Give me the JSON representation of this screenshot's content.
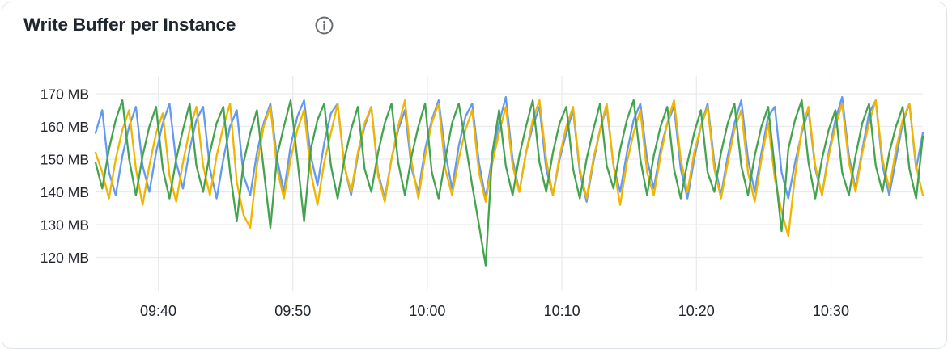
{
  "panel": {
    "title": "Write Buffer per Instance",
    "info_icon": "info-circle"
  },
  "colors": {
    "card_border": "#dfe2e6",
    "grid": "#e9eaec",
    "axis_text": "#21262e",
    "title_text": "#20262e",
    "icon": "#676c72",
    "series_blue": "#6399f1",
    "series_green": "#44a34e",
    "series_yellow": "#f1b500"
  },
  "chart_data": {
    "type": "line",
    "title": "Write Buffer per Instance",
    "unit": "MB",
    "grid": true,
    "legend_position": "none",
    "x_start_time": "09:35:20",
    "x_step_seconds": 30,
    "x_span_minutes": 61.5,
    "x_tick_labels": [
      "09:40",
      "09:50",
      "10:00",
      "10:10",
      "10:20",
      "10:30"
    ],
    "y_ticks": [
      170,
      160,
      150,
      140,
      130,
      120
    ],
    "y_tick_labels": [
      "170 MB",
      "160 MB",
      "150 MB",
      "140 MB",
      "130 MB",
      "120 MB"
    ],
    "ylim": [
      110,
      175
    ],
    "series": [
      {
        "name": "series-blue",
        "color": "#6399f1",
        "values": [
          158,
          165,
          146,
          139,
          151,
          160,
          166,
          148,
          140,
          152,
          161,
          167,
          149,
          141,
          153,
          162,
          166,
          147,
          138,
          150,
          160,
          165,
          145,
          139,
          152,
          161,
          167,
          150,
          140,
          154,
          163,
          168,
          151,
          142,
          155,
          164,
          167,
          148,
          139,
          151,
          160,
          166,
          146,
          138,
          150,
          159,
          165,
          147,
          140,
          153,
          162,
          168,
          152,
          141,
          154,
          163,
          167,
          149,
          138,
          151,
          161,
          169,
          150,
          140,
          152,
          160,
          166,
          147,
          139,
          150,
          158,
          165,
          146,
          137,
          149,
          159,
          166,
          148,
          140,
          152,
          162,
          167,
          150,
          141,
          153,
          161,
          166,
          147,
          138,
          150,
          160,
          167,
          149,
          139,
          151,
          161,
          168,
          150,
          140,
          152,
          163,
          166,
          146,
          138,
          149,
          158,
          165,
          147,
          139,
          152,
          162,
          169,
          151,
          141,
          153,
          164,
          168,
          148,
          139,
          150,
          161,
          167,
          147,
          158
        ]
      },
      {
        "name": "series-green",
        "color": "#44a34e",
        "values": [
          149,
          141,
          153,
          162,
          168,
          150,
          139,
          151,
          160,
          166,
          147,
          138,
          150,
          159,
          167,
          148,
          140,
          152,
          161,
          166,
          146,
          131,
          149,
          158,
          165,
          147,
          129,
          151,
          160,
          168,
          150,
          131,
          153,
          162,
          167,
          148,
          138,
          150,
          159,
          166,
          147,
          140,
          152,
          161,
          167,
          149,
          139,
          151,
          160,
          167,
          146,
          138,
          150,
          161,
          167,
          155,
          142,
          130,
          117.5,
          152,
          165,
          148,
          139,
          151,
          160,
          168,
          149,
          140,
          152,
          161,
          166,
          147,
          138,
          150,
          159,
          167,
          148,
          141,
          153,
          162,
          168,
          150,
          139,
          151,
          160,
          166,
          147,
          138,
          149,
          158,
          165,
          146,
          140,
          152,
          161,
          167,
          148,
          139,
          151,
          160,
          166,
          147,
          128,
          153,
          162,
          168,
          149,
          138,
          150,
          159,
          165,
          146,
          139,
          151,
          161,
          167,
          148,
          140,
          152,
          160,
          166,
          147,
          138,
          157
        ]
      },
      {
        "name": "series-yellow",
        "color": "#f1b500",
        "values": [
          152,
          146,
          138,
          150,
          159,
          165,
          147,
          136,
          148,
          158,
          164,
          145,
          137,
          149,
          159,
          166,
          148,
          139,
          151,
          160,
          167,
          143,
          133,
          129,
          148,
          160,
          166,
          147,
          138,
          150,
          159,
          165,
          146,
          136,
          149,
          158,
          167,
          148,
          140,
          152,
          161,
          166,
          145,
          137,
          150,
          160,
          168,
          149,
          138,
          151,
          161,
          167,
          147,
          139,
          150,
          159,
          165,
          146,
          137,
          149,
          158,
          166,
          148,
          140,
          152,
          162,
          168,
          150,
          139,
          151,
          160,
          166,
          147,
          138,
          150,
          159,
          167,
          148,
          136,
          149,
          158,
          165,
          146,
          139,
          151,
          161,
          168,
          150,
          140,
          152,
          160,
          166,
          147,
          138,
          149,
          159,
          165,
          146,
          137,
          150,
          161,
          144,
          134,
          126.5,
          145,
          159,
          166,
          148,
          139,
          151,
          160,
          167,
          149,
          140,
          152,
          161,
          168,
          150,
          141,
          153,
          162,
          167,
          148,
          139
        ]
      }
    ]
  }
}
